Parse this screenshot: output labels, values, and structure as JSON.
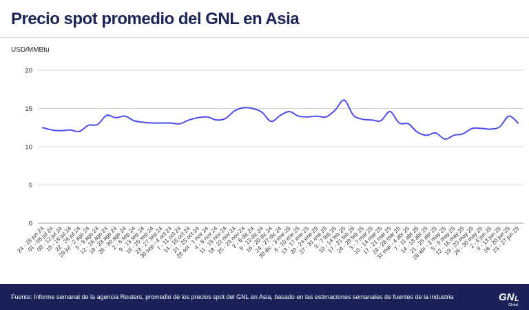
{
  "header": {
    "title": "Precio spot promedio del GNL en Asia",
    "unit": "USD/MMBtu"
  },
  "footer": {
    "source": "Fuente: Informe semanal de la agencia Reuters, promedio de los precios spot del GNL en Asia, basado en las estimaciones semanales de fuentes de la industria",
    "logo_text": "GNL",
    "logo_sub": "Global"
  },
  "colors": {
    "line": "#4a4cf0",
    "title": "#1c2357",
    "footer_bg": "#1b2058",
    "grid": "#d9d9d9"
  },
  "chart_data": {
    "type": "line",
    "title": "Precio spot promedio del GNL en Asia",
    "ylabel": "USD/MMBtu",
    "xlabel": "",
    "ylim": [
      0,
      20
    ],
    "yticks": [
      0,
      5,
      10,
      15,
      20
    ],
    "grid": true,
    "legend": "none",
    "categories": [
      "24 - 28 jun 24",
      "01 - 05 jul 24",
      "08 - 12 jul 24",
      "15 - 19 jul 24",
      "22 - 26 jul 24",
      "29 jul - 2 ago 24",
      "5 - 9 ago 24",
      "12 - 16 ago 24",
      "19 - 23 ago 24",
      "26 - 30 ago 24",
      "2 - 6 sep 24",
      "9 - 13 sep 24",
      "16 - 20 sep 24",
      "23 - 27 sep 24",
      "30 sep - 4 oct 24",
      "7 - 11 oct 24",
      "14 - 18 oct 24",
      "21 - 25 oct 24",
      "28 oct - 1 nov 24",
      "4 - 8 nov 24",
      "11 - 15 nov 24",
      "18 - 22 nov 24",
      "25 - 29 nov 24",
      "2 - 6 dic 24",
      "9 - 13 dic 24",
      "16 - 20 dic 24",
      "24 - 27 dic 24",
      "30 dic - 3 ene 25",
      "6 - 10 ene 25",
      "13 - 17 ene 25",
      "20 - 24 ene 25",
      "27 - 31 ene 25",
      "3 - 7 feb 25",
      "10 - 14 feb 25",
      "17 - 21 feb 25",
      "24 - 28 feb 25",
      "3 - 7 mar 25",
      "10 - 14 mar 25",
      "17 - 21 mar 25",
      "24 - 28 mar 25",
      "31 mar - 4 abr 25",
      "7 - 11 abr 25",
      "14 - 18 abr 25",
      "21 - 25 abr 25",
      "28 abr - 2 may 25",
      "5 - 9 may 25",
      "12 - 16 may 25",
      "19 - 23 may 25",
      "26 - 30 may 25",
      "2 - 6 jun 25",
      "9 - 13 jun 25",
      "16 - 20 jun 25",
      "23 - 27 jun 25"
    ],
    "series": [
      {
        "values": [
          12.5,
          12.2,
          12.1,
          12.2,
          12.0,
          12.8,
          12.9,
          14.1,
          13.8,
          14.0,
          13.4,
          13.2,
          13.1,
          13.1,
          13.1,
          13.0,
          13.5,
          13.8,
          13.9,
          13.5,
          13.7,
          14.7,
          15.1,
          15.0,
          14.5,
          13.3,
          14.1,
          14.6,
          14.0,
          13.9,
          14.0,
          13.9,
          14.8,
          16.1,
          14.1,
          13.6,
          13.5,
          13.4,
          14.6,
          13.1,
          13.0,
          11.9,
          11.5,
          11.8,
          11.0,
          11.5,
          11.7,
          12.4,
          12.4,
          12.3,
          12.6,
          14.0,
          13.1
        ]
      }
    ]
  }
}
